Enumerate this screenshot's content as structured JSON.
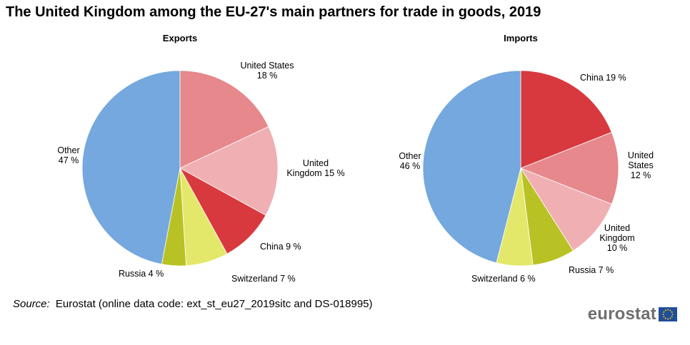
{
  "title": "The United Kingdom among the EU-27's main partners for trade in goods, 2019",
  "source": {
    "label": "Source:",
    "text": "Eurostat (online data code: ext_st_eu27_2019sitc and DS-018995)"
  },
  "logo": {
    "text": "eurostat",
    "icon": "eu-flag-icon"
  },
  "colors": {
    "blue": "#74A8DE",
    "red": "#D7393F",
    "pink_dark": "#E6888C",
    "pink_light": "#F0B0B3",
    "olive": "#B8C224",
    "yellow_green": "#E4E86A",
    "eu_blue": "#1F4E9B",
    "eu_star": "#FFCC00"
  },
  "chart_data": [
    {
      "type": "pie",
      "title": "Exports",
      "slices": [
        {
          "name": "United States",
          "value": 18,
          "label": [
            "United States",
            "18 %"
          ],
          "color": "#E6888C"
        },
        {
          "name": "United Kingdom",
          "value": 15,
          "label": [
            "United",
            "Kingdom 15 %"
          ],
          "color": "#F0B0B3"
        },
        {
          "name": "China",
          "value": 9,
          "label": [
            "China  9 %"
          ],
          "color": "#D7393F"
        },
        {
          "name": "Switzerland",
          "value": 7,
          "label": [
            "Switzerland 7 %"
          ],
          "color": "#E4E86A"
        },
        {
          "name": "Russia",
          "value": 4,
          "label": [
            "Russia 4 %"
          ],
          "color": "#B8C224"
        },
        {
          "name": "Other",
          "value": 47,
          "label": [
            "Other",
            "47 %"
          ],
          "color": "#74A8DE"
        }
      ]
    },
    {
      "type": "pie",
      "title": "Imports",
      "slices": [
        {
          "name": "China",
          "value": 19,
          "label": [
            "China  19 %"
          ],
          "color": "#D7393F"
        },
        {
          "name": "United States",
          "value": 12,
          "label": [
            "United",
            "States",
            "12 %"
          ],
          "color": "#E6888C"
        },
        {
          "name": "United Kingdom",
          "value": 10,
          "label": [
            "United",
            "Kingdom",
            "10 %"
          ],
          "color": "#F0B0B3"
        },
        {
          "name": "Russia",
          "value": 7,
          "label": [
            "Russia 7 %"
          ],
          "color": "#B8C224"
        },
        {
          "name": "Switzerland",
          "value": 6,
          "label": [
            "Switzerland 6 %"
          ],
          "color": "#E4E86A"
        },
        {
          "name": "Other",
          "value": 46,
          "label": [
            "Other",
            "46 %"
          ],
          "color": "#74A8DE"
        }
      ]
    }
  ]
}
